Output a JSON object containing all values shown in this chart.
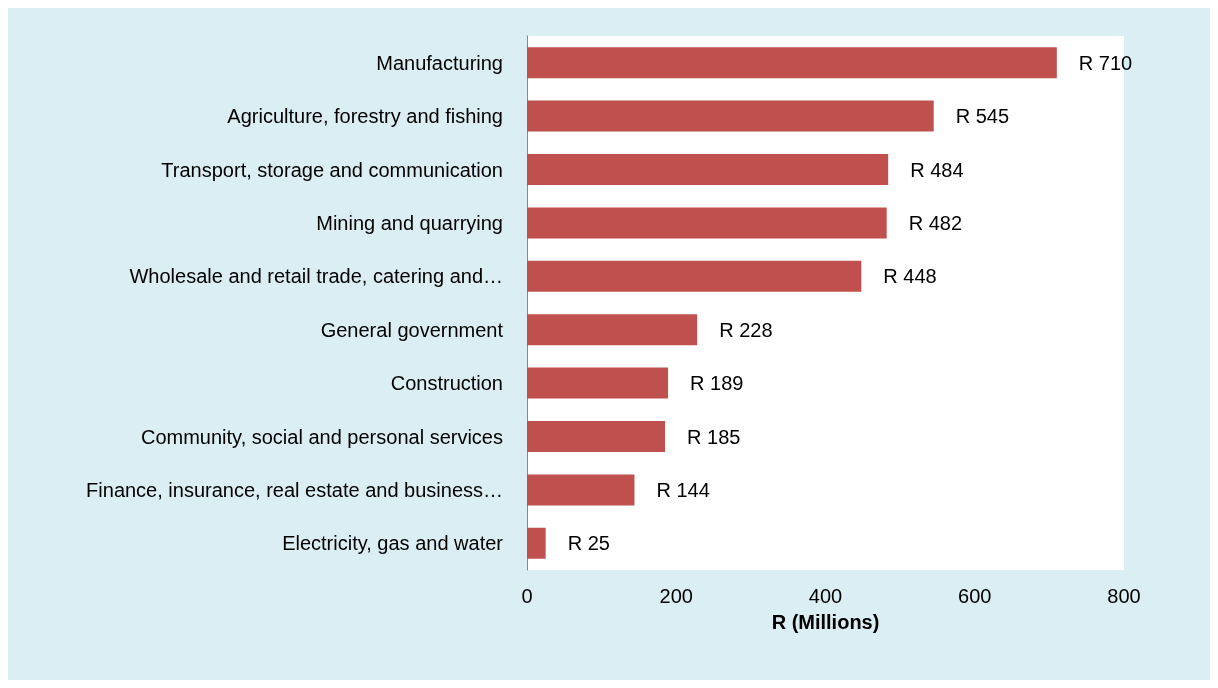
{
  "chart_data": {
    "type": "bar",
    "orientation": "horizontal",
    "xlabel": "R (Millions)",
    "categories": [
      "Manufacturing",
      "Agriculture, forestry and fishing",
      "Transport, storage and communication",
      "Mining and quarrying",
      "Wholesale and retail trade, catering and…",
      "General government",
      "Construction",
      "Community, social and personal services",
      "Finance, insurance, real estate and business…",
      "Electricity, gas and water"
    ],
    "values": [
      710,
      545,
      484,
      482,
      448,
      228,
      189,
      185,
      144,
      25
    ],
    "value_labels": [
      "R 710",
      "R 545",
      "R 484",
      "R 482",
      "R 448",
      "R 228",
      "R 189",
      "R 185",
      "R 144",
      "R 25"
    ],
    "color": "#c0504d",
    "xlim": [
      0,
      800
    ],
    "xticks": [
      0,
      200,
      400,
      600,
      800
    ],
    "grid": false
  }
}
